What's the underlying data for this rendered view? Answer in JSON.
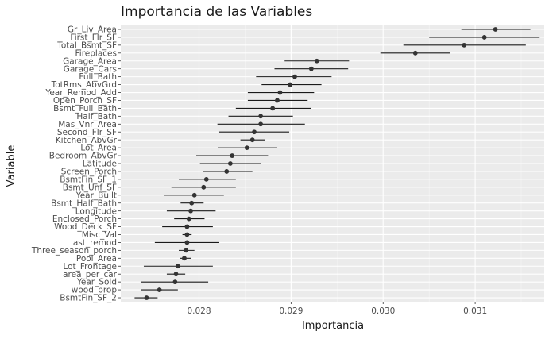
{
  "chart_data": {
    "type": "scatter",
    "title": "Importancia de las Variables",
    "xlabel": "Importancia",
    "ylabel": "Variable",
    "xlim": [
      0.02715,
      0.03175
    ],
    "xticks": [
      {
        "value": 0.028,
        "label": "0.028"
      },
      {
        "value": 0.029,
        "label": "0.029"
      },
      {
        "value": 0.03,
        "label": "0.030"
      },
      {
        "value": 0.031,
        "label": "0.031"
      }
    ],
    "grid": true,
    "background": "#ebebeb",
    "point_color": "#333333",
    "errorbar_color": "#1a1a1a",
    "points": [
      {
        "label": "Gr_Liv_Area",
        "value": 0.03122,
        "low": 0.03085,
        "high": 0.0316
      },
      {
        "label": "First_Flr_SF",
        "value": 0.0311,
        "low": 0.0305,
        "high": 0.0317
      },
      {
        "label": "Total_Bsmt_SF",
        "value": 0.03088,
        "low": 0.03022,
        "high": 0.03155
      },
      {
        "label": "Fireplaces",
        "value": 0.03035,
        "low": 0.02997,
        "high": 0.03073
      },
      {
        "label": "Garage_Area",
        "value": 0.02928,
        "low": 0.02893,
        "high": 0.02963
      },
      {
        "label": "Garage_Cars",
        "value": 0.02922,
        "low": 0.02882,
        "high": 0.02962
      },
      {
        "label": "Full_Bath",
        "value": 0.02904,
        "low": 0.02862,
        "high": 0.02944
      },
      {
        "label": "TotRms_AbvGrd",
        "value": 0.02899,
        "low": 0.02868,
        "high": 0.02933
      },
      {
        "label": "Year_Remod_Add",
        "value": 0.02888,
        "low": 0.02853,
        "high": 0.02925
      },
      {
        "label": "Open_Porch_SF",
        "value": 0.02885,
        "low": 0.02853,
        "high": 0.02918
      },
      {
        "label": "Bsmt_Full_Bath",
        "value": 0.0288,
        "low": 0.0284,
        "high": 0.02922
      },
      {
        "label": "Half_Bath",
        "value": 0.02867,
        "low": 0.02832,
        "high": 0.02902
      },
      {
        "label": "Mas_Vnr_Area",
        "value": 0.02867,
        "low": 0.0282,
        "high": 0.02915
      },
      {
        "label": "Second_Flr_SF",
        "value": 0.0286,
        "low": 0.02822,
        "high": 0.02898
      },
      {
        "label": "Kitchen_AbvGr",
        "value": 0.02858,
        "low": 0.02845,
        "high": 0.02872
      },
      {
        "label": "Lot_Area",
        "value": 0.02852,
        "low": 0.02821,
        "high": 0.02885
      },
      {
        "label": "Bedroom_AbvGr",
        "value": 0.02836,
        "low": 0.02797,
        "high": 0.02875
      },
      {
        "label": "Latitude",
        "value": 0.02834,
        "low": 0.02801,
        "high": 0.02867
      },
      {
        "label": "Screen_Porch",
        "value": 0.0283,
        "low": 0.02804,
        "high": 0.02858
      },
      {
        "label": "BsmtFin_SF_1",
        "value": 0.02808,
        "low": 0.02778,
        "high": 0.0284
      },
      {
        "label": "Bsmt_Unf_SF",
        "value": 0.02805,
        "low": 0.0277,
        "high": 0.0284
      },
      {
        "label": "Year_Built",
        "value": 0.02795,
        "low": 0.02762,
        "high": 0.02827
      },
      {
        "label": "Bsmt_Half_Bath",
        "value": 0.02792,
        "low": 0.0278,
        "high": 0.02805
      },
      {
        "label": "Longitude",
        "value": 0.02791,
        "low": 0.02765,
        "high": 0.02818
      },
      {
        "label": "Enclosed_Porch",
        "value": 0.02789,
        "low": 0.02773,
        "high": 0.02806
      },
      {
        "label": "Wood_Deck_SF",
        "value": 0.02787,
        "low": 0.0276,
        "high": 0.02815
      },
      {
        "label": "Misc_Val",
        "value": 0.02787,
        "low": 0.02782,
        "high": 0.02792
      },
      {
        "label": "last_remod",
        "value": 0.02787,
        "low": 0.02752,
        "high": 0.02822
      },
      {
        "label": "Three_season_porch",
        "value": 0.02786,
        "low": 0.02778,
        "high": 0.02795
      },
      {
        "label": "Pool_Area",
        "value": 0.02784,
        "low": 0.02779,
        "high": 0.02791
      },
      {
        "label": "Lot_Frontage",
        "value": 0.02777,
        "low": 0.0274,
        "high": 0.02815
      },
      {
        "label": "area_per_car",
        "value": 0.02775,
        "low": 0.02765,
        "high": 0.02785
      },
      {
        "label": "Year_Sold",
        "value": 0.02774,
        "low": 0.02737,
        "high": 0.0281
      },
      {
        "label": "wood_prop",
        "value": 0.02757,
        "low": 0.02737,
        "high": 0.02777
      },
      {
        "label": "BsmtFin_SF_2",
        "value": 0.02743,
        "low": 0.0273,
        "high": 0.02755
      }
    ]
  }
}
